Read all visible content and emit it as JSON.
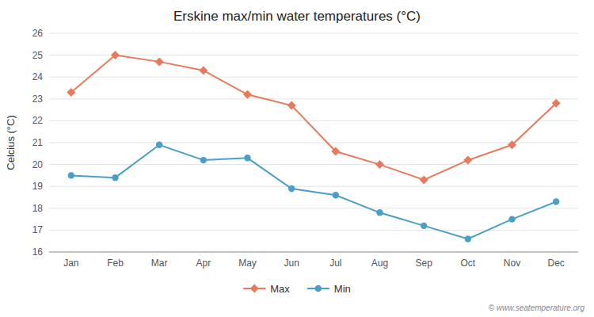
{
  "chart_data": {
    "type": "line",
    "title": "Erskine max/min water temperatures (°C)",
    "y_label": "Celcius (°C)",
    "categories": [
      "Jan",
      "Feb",
      "Mar",
      "Apr",
      "May",
      "Jun",
      "Jul",
      "Aug",
      "Sep",
      "Oct",
      "Nov",
      "Dec"
    ],
    "series": [
      {
        "name": "Max",
        "color": "#e8795a",
        "marker": "diamond",
        "values": [
          23.3,
          25.0,
          24.7,
          24.3,
          23.2,
          22.7,
          20.6,
          20.0,
          19.3,
          20.2,
          20.9,
          22.8
        ]
      },
      {
        "name": "Min",
        "color": "#4a9fc8",
        "marker": "circle",
        "values": [
          19.5,
          19.4,
          20.9,
          20.2,
          20.3,
          18.9,
          18.6,
          17.8,
          17.2,
          16.6,
          17.5,
          18.3
        ]
      }
    ],
    "ylim": [
      16,
      26
    ],
    "yticks": [
      16,
      17,
      18,
      19,
      20,
      21,
      22,
      23,
      24,
      25,
      26
    ],
    "grid": true,
    "legend": "bottom",
    "annotations": [
      "© www.seatemperature.org"
    ]
  }
}
